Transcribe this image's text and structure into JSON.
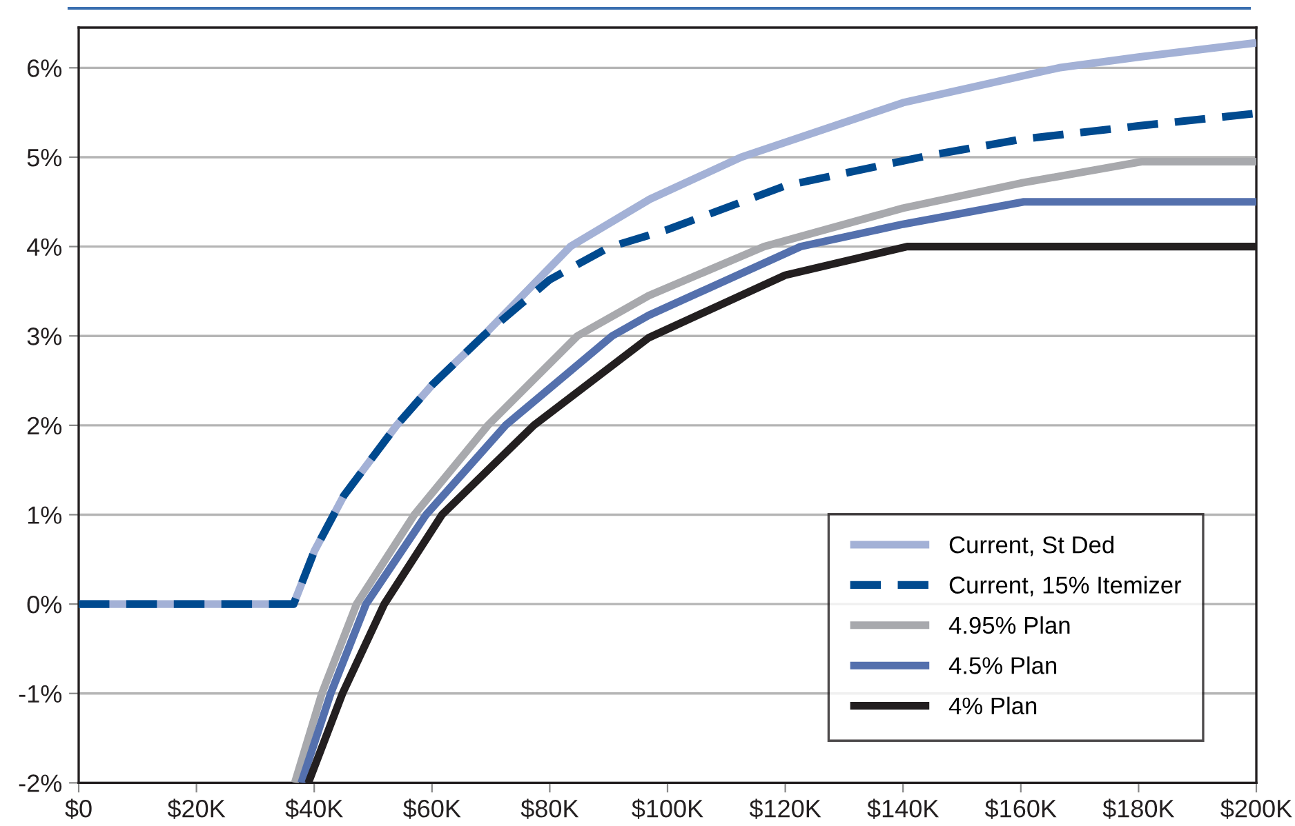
{
  "chart_data": {
    "type": "line",
    "series": [
      {
        "name": "Current, St Ded",
        "color": "#a3b1d6",
        "line_style": "solid",
        "x": [
          0,
          36.5,
          40,
          45,
          50,
          54,
          60,
          68.7,
          83.5,
          97,
          112.5,
          140,
          166.5,
          180,
          200
        ],
        "values": [
          0,
          0,
          0.59,
          1.21,
          1.65,
          2.0,
          2.45,
          3.0,
          4.0,
          4.53,
          5.0,
          5.61,
          6.0,
          6.12,
          6.28
        ]
      },
      {
        "name": "Current, 15% Itemizer",
        "color": "#004a8f",
        "line_style": "dashed",
        "x": [
          0,
          36.5,
          40,
          45,
          50,
          54,
          60,
          68.7,
          80,
          90,
          100,
          120,
          143.7,
          160,
          180,
          200
        ],
        "values": [
          0,
          0,
          0.59,
          1.21,
          1.65,
          2.0,
          2.45,
          3.0,
          3.63,
          3.99,
          4.19,
          4.68,
          5.01,
          5.2,
          5.35,
          5.49
        ]
      },
      {
        "name": "4.95% Plan",
        "color": "#a8a9ad",
        "line_style": "solid",
        "x": [
          36.7,
          41.3,
          47.2,
          57,
          69.5,
          84.7,
          96.8,
          116.4,
          140,
          160,
          180.5,
          200
        ],
        "values": [
          -2,
          -1,
          0,
          1,
          2,
          3,
          3.45,
          4,
          4.43,
          4.71,
          4.95,
          4.95
        ]
      },
      {
        "name": "4.5% Plan",
        "color": "#5470ad",
        "line_style": "solid",
        "x": [
          37.8,
          42.8,
          48.8,
          59,
          72.5,
          90.6,
          96.8,
          122.6,
          140,
          160.5,
          200
        ],
        "values": [
          -2,
          -1,
          0,
          1,
          2,
          3,
          3.23,
          4,
          4.25,
          4.5,
          4.5
        ]
      },
      {
        "name": "4% Plan",
        "color": "#231f20",
        "line_style": "solid",
        "x": [
          39,
          44.8,
          51.9,
          61.7,
          77.3,
          96.8,
          120,
          140.7,
          200
        ],
        "values": [
          -2,
          -1,
          0,
          1,
          2,
          2.98,
          3.68,
          4,
          4
        ]
      }
    ],
    "xlim": [
      0,
      200
    ],
    "xticks": [
      {
        "value": 0,
        "label": "$0"
      },
      {
        "value": 20,
        "label": "$20K"
      },
      {
        "value": 40,
        "label": "$40K"
      },
      {
        "value": 60,
        "label": "$60K"
      },
      {
        "value": 80,
        "label": "$80K"
      },
      {
        "value": 100,
        "label": "$100K"
      },
      {
        "value": 120,
        "label": "$120K"
      },
      {
        "value": 140,
        "label": "$140K"
      },
      {
        "value": 160,
        "label": "$160K"
      },
      {
        "value": 180,
        "label": "$180K"
      },
      {
        "value": 200,
        "label": "$200K"
      }
    ],
    "ylim": [
      -2,
      6.45
    ],
    "yticks": [
      {
        "value": -2,
        "label": "-2%"
      },
      {
        "value": -1,
        "label": "-1%"
      },
      {
        "value": 0,
        "label": "0%"
      },
      {
        "value": 1,
        "label": "1%"
      },
      {
        "value": 2,
        "label": "2%"
      },
      {
        "value": 3,
        "label": "3%"
      },
      {
        "value": 4,
        "label": "4%"
      },
      {
        "value": 5,
        "label": "5%"
      },
      {
        "value": 6,
        "label": "6%"
      }
    ],
    "grid": "y",
    "legend": "bottom right",
    "marker": "none"
  }
}
